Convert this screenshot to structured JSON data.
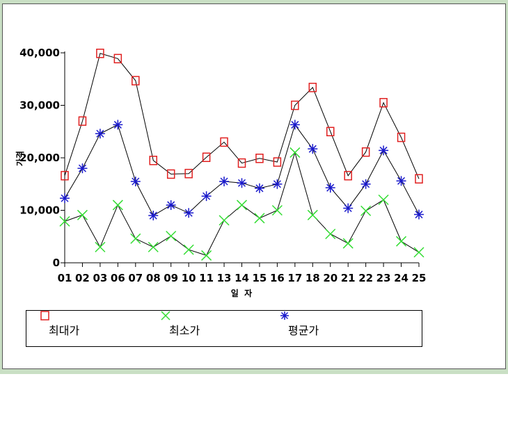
{
  "chart_data": {
    "type": "line",
    "categories": [
      "01",
      "02",
      "03",
      "06",
      "07",
      "08",
      "09",
      "10",
      "11",
      "13",
      "14",
      "15",
      "16",
      "17",
      "18",
      "20",
      "21",
      "22",
      "23",
      "24",
      "25"
    ],
    "series": [
      {
        "name": "최대가",
        "color": "#e02020",
        "marker": "square",
        "values": [
          16600,
          27000,
          39900,
          38900,
          34700,
          19500,
          16900,
          17000,
          20100,
          23000,
          19000,
          19900,
          19200,
          30000,
          33400,
          25000,
          16600,
          21100,
          30500,
          23900,
          16000
        ]
      },
      {
        "name": "최소가",
        "color": "#33dd33",
        "marker": "x",
        "values": [
          7900,
          9100,
          3000,
          11000,
          4600,
          3000,
          5100,
          2500,
          1400,
          8100,
          11000,
          8500,
          10000,
          21000,
          9100,
          5500,
          3700,
          9900,
          12000,
          4100,
          2000
        ]
      },
      {
        "name": "평균가",
        "color": "#1a1acc",
        "marker": "asterisk",
        "values": [
          12300,
          18000,
          24600,
          26300,
          15500,
          9000,
          11000,
          9500,
          12700,
          15500,
          15200,
          14200,
          15000,
          26300,
          21700,
          14300,
          10400,
          15000,
          21400,
          15600,
          9200
        ]
      }
    ],
    "y_ticks": [
      "0",
      "10,000",
      "20,000",
      "30,000",
      "40,000"
    ],
    "y_tick_values": [
      0,
      10000,
      20000,
      30000,
      40000
    ],
    "ylim": [
      0,
      40000
    ],
    "xlabel": "일  자",
    "ylabel": "가격",
    "grid": false,
    "legend_position": "bottom"
  }
}
